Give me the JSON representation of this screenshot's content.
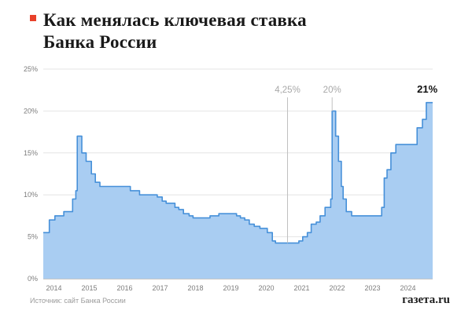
{
  "title_line1": "Как менялась ключевая ставка",
  "title_line2": "Банка России",
  "source": "Источник: сайт Банка России",
  "brand": {
    "logo": "газета.ru",
    "accent_color": "#e8402a"
  },
  "chart_data": {
    "type": "area",
    "title": "Как менялась ключевая ставка Банка России",
    "xlabel": "",
    "ylabel": "",
    "unit": "%",
    "ylim": [
      0,
      25
    ],
    "x_range": [
      2014,
      2025
    ],
    "yticks": [
      0,
      5,
      10,
      15,
      20,
      25
    ],
    "xticks": [
      2014,
      2015,
      2016,
      2017,
      2018,
      2019,
      2020,
      2021,
      2022,
      2023,
      2024
    ],
    "grid": true,
    "fill_color": "#a9cdf2",
    "line_color": "#4690d9",
    "grid_color": "#e4e4e4",
    "axis_color": "#8c8c8c",
    "annotation_line_color": "#c0c0c0",
    "points": [
      [
        2014.0,
        5.5
      ],
      [
        2014.17,
        7.0
      ],
      [
        2014.33,
        7.5
      ],
      [
        2014.58,
        8.0
      ],
      [
        2014.83,
        9.5
      ],
      [
        2014.92,
        10.5
      ],
      [
        2014.96,
        17.0
      ],
      [
        2015.09,
        15.0
      ],
      [
        2015.21,
        14.0
      ],
      [
        2015.36,
        12.5
      ],
      [
        2015.47,
        11.5
      ],
      [
        2015.6,
        11.0
      ],
      [
        2016.46,
        10.5
      ],
      [
        2016.72,
        10.0
      ],
      [
        2017.22,
        9.75
      ],
      [
        2017.36,
        9.25
      ],
      [
        2017.47,
        9.0
      ],
      [
        2017.72,
        8.5
      ],
      [
        2017.83,
        8.25
      ],
      [
        2017.96,
        7.75
      ],
      [
        2018.12,
        7.5
      ],
      [
        2018.23,
        7.25
      ],
      [
        2018.71,
        7.5
      ],
      [
        2018.96,
        7.75
      ],
      [
        2019.46,
        7.5
      ],
      [
        2019.57,
        7.25
      ],
      [
        2019.69,
        7.0
      ],
      [
        2019.82,
        6.5
      ],
      [
        2019.96,
        6.25
      ],
      [
        2020.12,
        6.0
      ],
      [
        2020.33,
        5.5
      ],
      [
        2020.47,
        4.5
      ],
      [
        2020.56,
        4.25
      ],
      [
        2021.22,
        4.5
      ],
      [
        2021.33,
        5.0
      ],
      [
        2021.46,
        5.5
      ],
      [
        2021.57,
        6.5
      ],
      [
        2021.71,
        6.75
      ],
      [
        2021.82,
        7.5
      ],
      [
        2021.96,
        8.5
      ],
      [
        2022.12,
        9.5
      ],
      [
        2022.16,
        20.0
      ],
      [
        2022.26,
        17.0
      ],
      [
        2022.34,
        14.0
      ],
      [
        2022.42,
        11.0
      ],
      [
        2022.47,
        9.5
      ],
      [
        2022.56,
        8.0
      ],
      [
        2022.71,
        7.5
      ],
      [
        2023.56,
        8.5
      ],
      [
        2023.63,
        12.0
      ],
      [
        2023.71,
        13.0
      ],
      [
        2023.82,
        15.0
      ],
      [
        2023.96,
        16.0
      ],
      [
        2024.56,
        18.0
      ],
      [
        2024.71,
        19.0
      ],
      [
        2024.82,
        21.0
      ]
    ],
    "annotations": [
      {
        "x": 2020.9,
        "label": "4,25%",
        "line_to_value": 4.25,
        "color": "#a8a8a8",
        "bold": false
      },
      {
        "x": 2022.16,
        "label": "20%",
        "line_to_value": 20.0,
        "color": "#a8a8a8",
        "bold": false
      },
      {
        "x": 2024.85,
        "label": "21%",
        "line_to_value": null,
        "color": "#111111",
        "bold": true
      }
    ]
  }
}
